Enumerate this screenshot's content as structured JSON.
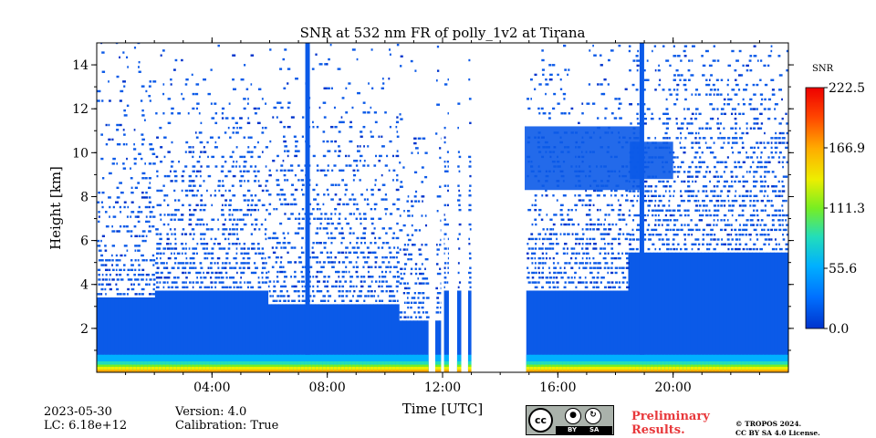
{
  "chart_data": {
    "type": "heatmap",
    "title": "SNR at 532 nm FR of polly_1v2 at Tirana",
    "xlabel": "Time [UTC]",
    "ylabel": "Height [km]",
    "xlim_hours": [
      0,
      24
    ],
    "ylim_km": [
      0,
      15
    ],
    "x_ticks": [
      {
        "hour": 4,
        "label": "04:00"
      },
      {
        "hour": 8,
        "label": "08:00"
      },
      {
        "hour": 12,
        "label": "12:00"
      },
      {
        "hour": 16,
        "label": "16:00"
      },
      {
        "hour": 20,
        "label": "20:00"
      }
    ],
    "y_ticks": [
      {
        "km": 2,
        "label": "2"
      },
      {
        "km": 4,
        "label": "4"
      },
      {
        "km": 6,
        "label": "6"
      },
      {
        "km": 8,
        "label": "8"
      },
      {
        "km": 10,
        "label": "10"
      },
      {
        "km": 12,
        "label": "12"
      },
      {
        "km": 14,
        "label": "14"
      }
    ],
    "colorbar": {
      "label": "SNR",
      "min": 0.0,
      "max": 222.5,
      "ticks": [
        "0.0",
        "55.6",
        "111.3",
        "166.9",
        "222.5"
      ],
      "colormap": [
        "#0033cc",
        "#0070ff",
        "#00b0ff",
        "#22ddbb",
        "#77ee22",
        "#eeee00",
        "#ffaa00",
        "#ff4400",
        "#ee0000"
      ]
    },
    "data_gaps_hours": [
      [
        11.55,
        11.7
      ],
      [
        11.95,
        12.05
      ],
      [
        12.22,
        12.45
      ],
      [
        12.65,
        12.88
      ],
      [
        13.0,
        14.85
      ]
    ],
    "high_snr_near_surface_km": 0.3,
    "dense_signal_top_km": {
      "night_before_noon": 6.0,
      "evening": 9.0
    },
    "cloud_layers": [
      {
        "start_hour": 14.85,
        "end_hour": 18.9,
        "bottom_km": 8.3,
        "top_km": 11.2
      },
      {
        "start_hour": 18.5,
        "end_hour": 20.0,
        "bottom_km": 8.8,
        "top_km": 10.5
      }
    ],
    "vertical_streaks_hours": [
      7.3,
      18.9
    ]
  },
  "footer": {
    "date": "2023-05-30",
    "lc": "LC: 6.18e+12",
    "version": "Version: 4.0",
    "calibration": "Calibration: True",
    "preliminary_line1": "Preliminary",
    "preliminary_line2": "Results.",
    "copyright_line1": "© TROPOS 2024.",
    "copyright_line2": "CC BY SA 4.0 License.",
    "license_badge": {
      "cc": "cc",
      "by": "BY",
      "sa": "SA"
    }
  },
  "colors": {
    "background_signal": "#0b5ae8",
    "deep_blue": "#0033cc",
    "gap": "#ffffff"
  }
}
